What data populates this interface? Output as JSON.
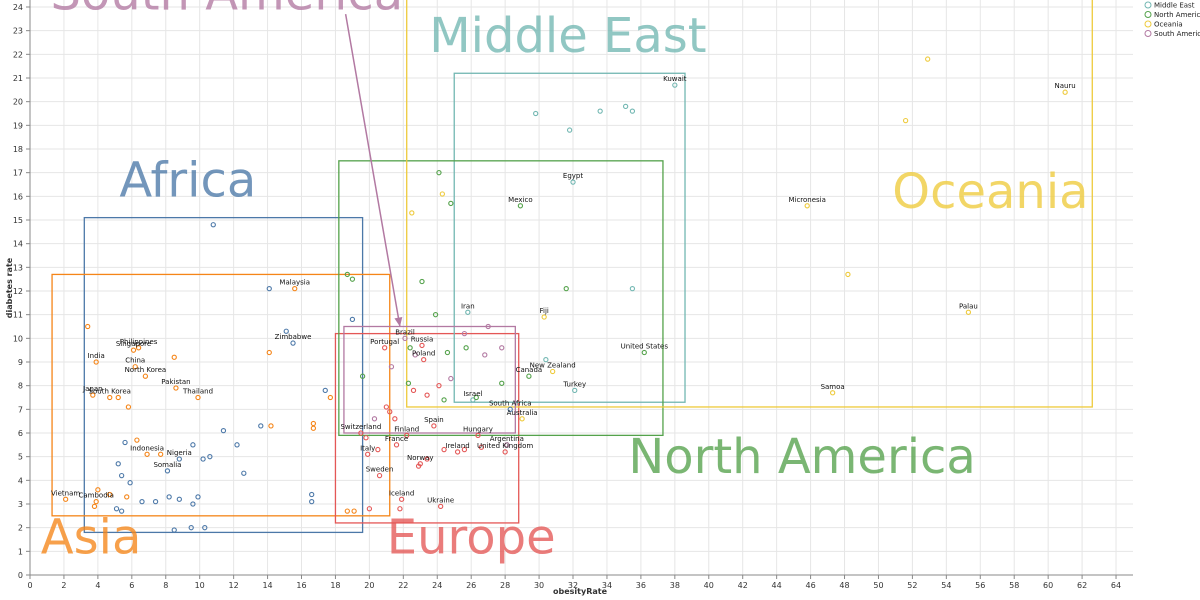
{
  "chart_data": {
    "type": "scatter",
    "xlabel": "obesityRate",
    "ylabel": "diabetes rate",
    "xlim": [
      0,
      65
    ],
    "ylim": [
      0,
      24
    ],
    "x_ticks": [
      0,
      2,
      4,
      6,
      8,
      10,
      12,
      14,
      16,
      18,
      20,
      22,
      24,
      26,
      28,
      30,
      32,
      34,
      36,
      38,
      40,
      42,
      44,
      46,
      48,
      50,
      52,
      54,
      56,
      58,
      60,
      62,
      64
    ],
    "y_ticks": [
      0,
      1,
      2,
      3,
      4,
      5,
      6,
      7,
      8,
      9,
      10,
      11,
      12,
      13,
      14,
      15,
      16,
      17,
      18,
      19,
      20,
      21,
      22,
      23,
      24
    ],
    "grid": true,
    "legend_position": "top-right",
    "legend": [
      {
        "name": "Middle East",
        "color": "#72b7b2"
      },
      {
        "name": "North America",
        "color": "#54a24b"
      },
      {
        "name": "Oceania",
        "color": "#eeca3b"
      },
      {
        "name": "South America",
        "color": "#b279a2"
      }
    ],
    "colors": {
      "Africa": "#4c78a8",
      "Asia": "#f58518",
      "Europe": "#e45756",
      "Middle East": "#72b7b2",
      "North America": "#54a24b",
      "Oceania": "#eeca3b",
      "South America": "#b279a2"
    },
    "regions": [
      {
        "name": "Africa",
        "x0": 3.2,
        "x1": 19.6,
        "y0": 1.8,
        "y1": 15.1,
        "label_x": 9.3,
        "label_y": 16.0
      },
      {
        "name": "Asia",
        "x0": 1.3,
        "x1": 21.2,
        "y0": 2.5,
        "y1": 12.7,
        "label_x": 3.6,
        "label_y": 0.9
      },
      {
        "name": "Europe",
        "x0": 18.0,
        "x1": 28.8,
        "y0": 2.2,
        "y1": 10.2,
        "label_x": 26.0,
        "label_y": 0.9
      },
      {
        "name": "Middle East",
        "x0": 25.0,
        "x1": 38.6,
        "y0": 7.3,
        "y1": 21.2,
        "label_x": 31.7,
        "label_y": 22.1
      },
      {
        "name": "North America",
        "x0": 18.2,
        "x1": 37.3,
        "y0": 5.9,
        "y1": 17.5,
        "label_x": 45.5,
        "label_y": 4.3
      },
      {
        "name": "Oceania",
        "x0": 22.2,
        "x1": 62.6,
        "y0": 7.1,
        "y1": 25.0,
        "label_x": 56.6,
        "label_y": 15.5
      },
      {
        "name": "South America",
        "x0": 18.5,
        "x1": 28.6,
        "y0": 6.0,
        "y1": 10.5,
        "label_x": 11.6,
        "label_y": 23.9
      }
    ],
    "arrow": {
      "x0": 18.6,
      "y0": 23.7,
      "x1": 21.8,
      "y1": 10.5,
      "color": "#b279a2"
    },
    "points": [
      {
        "label": "Kuwait",
        "region": "Middle East",
        "x": 38.0,
        "y": 20.7
      },
      {
        "label": "Nauru",
        "region": "Oceania",
        "x": 61.0,
        "y": 20.4
      },
      {
        "label": "Egypt",
        "region": "Middle East",
        "x": 32.0,
        "y": 16.6
      },
      {
        "label": "Mexico",
        "region": "North America",
        "x": 28.9,
        "y": 15.6
      },
      {
        "label": "Micronesia",
        "region": "Oceania",
        "x": 45.8,
        "y": 15.6
      },
      {
        "label": "Malaysia",
        "region": "Asia",
        "x": 15.6,
        "y": 12.1
      },
      {
        "label": "Iran",
        "region": "Middle East",
        "x": 25.8,
        "y": 11.1
      },
      {
        "label": "Fiji",
        "region": "Oceania",
        "x": 30.3,
        "y": 10.9
      },
      {
        "label": "Palau",
        "region": "Oceania",
        "x": 55.3,
        "y": 11.1
      },
      {
        "label": "Brazil",
        "region": "South America",
        "x": 22.1,
        "y": 10.0
      },
      {
        "label": "Zimbabwe",
        "region": "Africa",
        "x": 15.5,
        "y": 9.8
      },
      {
        "label": "Philippines",
        "region": "Asia",
        "x": 6.4,
        "y": 9.6
      },
      {
        "label": "Singapore",
        "region": "Asia",
        "x": 6.1,
        "y": 9.5
      },
      {
        "label": "Portugal",
        "region": "Europe",
        "x": 20.9,
        "y": 9.6
      },
      {
        "label": "Russia",
        "region": "Europe",
        "x": 23.1,
        "y": 9.7
      },
      {
        "label": "Poland",
        "region": "Europe",
        "x": 23.2,
        "y": 9.1
      },
      {
        "label": "United States",
        "region": "North America",
        "x": 36.2,
        "y": 9.4
      },
      {
        "label": "India",
        "region": "Asia",
        "x": 3.9,
        "y": 9.0
      },
      {
        "label": "China",
        "region": "Asia",
        "x": 6.2,
        "y": 8.8
      },
      {
        "label": "New Zealand",
        "region": "Oceania",
        "x": 30.8,
        "y": 8.6
      },
      {
        "label": "North Korea",
        "region": "Asia",
        "x": 6.8,
        "y": 8.4
      },
      {
        "label": "Canada",
        "region": "North America",
        "x": 29.4,
        "y": 8.4
      },
      {
        "label": "Pakistan",
        "region": "Asia",
        "x": 8.6,
        "y": 7.9
      },
      {
        "label": "Turkey",
        "region": "Middle East",
        "x": 32.1,
        "y": 7.8
      },
      {
        "label": "Samoa",
        "region": "Oceania",
        "x": 47.3,
        "y": 7.7
      },
      {
        "label": "Thailand",
        "region": "Asia",
        "x": 9.9,
        "y": 7.5
      },
      {
        "label": "Japan",
        "region": "Asia",
        "x": 3.7,
        "y": 7.6
      },
      {
        "label": "South Korea",
        "region": "Asia",
        "x": 4.7,
        "y": 7.5
      },
      {
        "label": "Israel",
        "region": "Middle East",
        "x": 26.1,
        "y": 7.4
      },
      {
        "label": "South Africa",
        "region": "Africa",
        "x": 28.3,
        "y": 7.0
      },
      {
        "label": "Australia",
        "region": "Oceania",
        "x": 29.0,
        "y": 6.6
      },
      {
        "label": "Spain",
        "region": "Europe",
        "x": 23.8,
        "y": 6.3
      },
      {
        "label": "Hungary",
        "region": "Europe",
        "x": 26.4,
        "y": 5.9
      },
      {
        "label": "Switzerland",
        "region": "Europe",
        "x": 19.5,
        "y": 6.0
      },
      {
        "label": "Finland",
        "region": "Europe",
        "x": 22.2,
        "y": 5.9
      },
      {
        "label": "France",
        "region": "Europe",
        "x": 21.6,
        "y": 5.5
      },
      {
        "label": "Argentina",
        "region": "South America",
        "x": 28.1,
        "y": 5.5
      },
      {
        "label": "Indonesia",
        "region": "Asia",
        "x": 6.9,
        "y": 5.1
      },
      {
        "label": "United Kingdom",
        "region": "Europe",
        "x": 28.0,
        "y": 5.2
      },
      {
        "label": "Ireland",
        "region": "Europe",
        "x": 25.2,
        "y": 5.2
      },
      {
        "label": "Italy",
        "region": "Europe",
        "x": 19.9,
        "y": 5.1
      },
      {
        "label": "Nigeria",
        "region": "Africa",
        "x": 8.8,
        "y": 4.9
      },
      {
        "label": "Norway",
        "region": "Europe",
        "x": 23.0,
        "y": 4.7
      },
      {
        "label": "Somalia",
        "region": "Africa",
        "x": 8.1,
        "y": 4.4
      },
      {
        "label": "Sweden",
        "region": "Europe",
        "x": 20.6,
        "y": 4.2
      },
      {
        "label": "Iceland",
        "region": "Europe",
        "x": 21.9,
        "y": 3.2
      },
      {
        "label": "Vietnam",
        "region": "Asia",
        "x": 2.1,
        "y": 3.2
      },
      {
        "label": "Cambodia",
        "region": "Asia",
        "x": 3.9,
        "y": 3.1
      },
      {
        "label": "Ukraine",
        "region": "Europe",
        "x": 24.2,
        "y": 2.9
      },
      {
        "label": "",
        "region": "Oceania",
        "x": 52.9,
        "y": 21.8
      },
      {
        "label": "",
        "region": "Oceania",
        "x": 51.6,
        "y": 19.2
      },
      {
        "label": "",
        "region": "Oceania",
        "x": 48.2,
        "y": 12.7
      },
      {
        "label": "",
        "region": "Oceania",
        "x": 24.3,
        "y": 16.1
      },
      {
        "label": "",
        "region": "Oceania",
        "x": 22.5,
        "y": 15.3
      },
      {
        "label": "",
        "region": "Middle East",
        "x": 29.8,
        "y": 19.5
      },
      {
        "label": "",
        "region": "Middle East",
        "x": 31.8,
        "y": 18.8
      },
      {
        "label": "",
        "region": "Middle East",
        "x": 33.6,
        "y": 19.6
      },
      {
        "label": "",
        "region": "Middle East",
        "x": 35.1,
        "y": 19.8
      },
      {
        "label": "",
        "region": "Middle East",
        "x": 35.5,
        "y": 19.6
      },
      {
        "label": "",
        "region": "Middle East",
        "x": 35.5,
        "y": 12.1
      },
      {
        "label": "",
        "region": "Middle East",
        "x": 30.4,
        "y": 9.1
      },
      {
        "label": "",
        "region": "North America",
        "x": 24.1,
        "y": 17.0
      },
      {
        "label": "",
        "region": "North America",
        "x": 24.8,
        "y": 15.7
      },
      {
        "label": "",
        "region": "North America",
        "x": 18.7,
        "y": 12.7
      },
      {
        "label": "",
        "region": "North America",
        "x": 19.0,
        "y": 12.5
      },
      {
        "label": "",
        "region": "North America",
        "x": 23.1,
        "y": 12.4
      },
      {
        "label": "",
        "region": "North America",
        "x": 31.6,
        "y": 12.1
      },
      {
        "label": "",
        "region": "North America",
        "x": 23.9,
        "y": 11.0
      },
      {
        "label": "",
        "region": "North America",
        "x": 22.4,
        "y": 9.6
      },
      {
        "label": "",
        "region": "North America",
        "x": 24.6,
        "y": 9.4
      },
      {
        "label": "",
        "region": "North America",
        "x": 25.7,
        "y": 9.6
      },
      {
        "label": "",
        "region": "North America",
        "x": 19.6,
        "y": 8.4
      },
      {
        "label": "",
        "region": "North America",
        "x": 22.3,
        "y": 8.1
      },
      {
        "label": "",
        "region": "North America",
        "x": 27.8,
        "y": 8.1
      },
      {
        "label": "",
        "region": "North America",
        "x": 24.4,
        "y": 7.4
      },
      {
        "label": "",
        "region": "North America",
        "x": 26.3,
        "y": 7.5
      },
      {
        "label": "",
        "region": "Africa",
        "x": 10.8,
        "y": 14.8
      },
      {
        "label": "",
        "region": "Africa",
        "x": 14.1,
        "y": 12.1
      },
      {
        "label": "",
        "region": "Africa",
        "x": 15.1,
        "y": 10.3
      },
      {
        "label": "",
        "region": "Africa",
        "x": 19.0,
        "y": 10.8
      },
      {
        "label": "",
        "region": "Africa",
        "x": 17.4,
        "y": 7.8
      },
      {
        "label": "",
        "region": "Africa",
        "x": 13.6,
        "y": 6.3
      },
      {
        "label": "",
        "region": "Africa",
        "x": 11.4,
        "y": 6.1
      },
      {
        "label": "",
        "region": "Africa",
        "x": 12.2,
        "y": 5.5
      },
      {
        "label": "",
        "region": "Africa",
        "x": 10.6,
        "y": 5.0
      },
      {
        "label": "",
        "region": "Africa",
        "x": 9.6,
        "y": 5.5
      },
      {
        "label": "",
        "region": "Africa",
        "x": 5.6,
        "y": 5.6
      },
      {
        "label": "",
        "region": "Africa",
        "x": 5.2,
        "y": 4.7
      },
      {
        "label": "",
        "region": "Africa",
        "x": 5.4,
        "y": 4.2
      },
      {
        "label": "",
        "region": "Africa",
        "x": 5.9,
        "y": 3.9
      },
      {
        "label": "",
        "region": "Africa",
        "x": 12.6,
        "y": 4.3
      },
      {
        "label": "",
        "region": "Africa",
        "x": 10.2,
        "y": 4.9
      },
      {
        "label": "",
        "region": "Africa",
        "x": 16.6,
        "y": 3.4
      },
      {
        "label": "",
        "region": "Africa",
        "x": 16.6,
        "y": 3.1
      },
      {
        "label": "",
        "region": "Africa",
        "x": 6.6,
        "y": 3.1
      },
      {
        "label": "",
        "region": "Africa",
        "x": 7.4,
        "y": 3.1
      },
      {
        "label": "",
        "region": "Africa",
        "x": 8.2,
        "y": 3.3
      },
      {
        "label": "",
        "region": "Africa",
        "x": 8.8,
        "y": 3.2
      },
      {
        "label": "",
        "region": "Africa",
        "x": 9.6,
        "y": 3.0
      },
      {
        "label": "",
        "region": "Africa",
        "x": 9.9,
        "y": 3.3
      },
      {
        "label": "",
        "region": "Africa",
        "x": 5.1,
        "y": 2.8
      },
      {
        "label": "",
        "region": "Africa",
        "x": 5.4,
        "y": 2.7
      },
      {
        "label": "",
        "region": "Africa",
        "x": 8.5,
        "y": 1.9
      },
      {
        "label": "",
        "region": "Africa",
        "x": 9.5,
        "y": 2.0
      },
      {
        "label": "",
        "region": "Africa",
        "x": 10.3,
        "y": 2.0
      },
      {
        "label": "",
        "region": "Asia",
        "x": 3.4,
        "y": 10.5
      },
      {
        "label": "",
        "region": "Asia",
        "x": 8.5,
        "y": 9.2
      },
      {
        "label": "",
        "region": "Asia",
        "x": 14.1,
        "y": 9.4
      },
      {
        "label": "",
        "region": "Asia",
        "x": 16.7,
        "y": 6.4
      },
      {
        "label": "",
        "region": "Asia",
        "x": 16.7,
        "y": 6.2
      },
      {
        "label": "",
        "region": "Asia",
        "x": 14.2,
        "y": 6.3
      },
      {
        "label": "",
        "region": "Asia",
        "x": 17.7,
        "y": 7.5
      },
      {
        "label": "",
        "region": "Asia",
        "x": 5.8,
        "y": 7.1
      },
      {
        "label": "",
        "region": "Asia",
        "x": 5.2,
        "y": 7.5
      },
      {
        "label": "",
        "region": "Asia",
        "x": 6.3,
        "y": 5.7
      },
      {
        "label": "",
        "region": "Asia",
        "x": 7.7,
        "y": 5.1
      },
      {
        "label": "",
        "region": "Asia",
        "x": 4.0,
        "y": 3.6
      },
      {
        "label": "",
        "region": "Asia",
        "x": 4.7,
        "y": 3.4
      },
      {
        "label": "",
        "region": "Asia",
        "x": 5.7,
        "y": 3.3
      },
      {
        "label": "",
        "region": "Asia",
        "x": 3.8,
        "y": 2.9
      },
      {
        "label": "",
        "region": "Asia",
        "x": 18.7,
        "y": 2.7
      },
      {
        "label": "",
        "region": "Asia",
        "x": 19.1,
        "y": 2.7
      },
      {
        "label": "",
        "region": "Europe",
        "x": 21.2,
        "y": 6.9
      },
      {
        "label": "",
        "region": "Europe",
        "x": 22.6,
        "y": 7.8
      },
      {
        "label": "",
        "region": "Europe",
        "x": 23.4,
        "y": 7.6
      },
      {
        "label": "",
        "region": "Europe",
        "x": 24.1,
        "y": 8.0
      },
      {
        "label": "",
        "region": "Europe",
        "x": 21.0,
        "y": 7.1
      },
      {
        "label": "",
        "region": "Europe",
        "x": 21.5,
        "y": 6.6
      },
      {
        "label": "",
        "region": "Europe",
        "x": 19.8,
        "y": 5.8
      },
      {
        "label": "",
        "region": "Europe",
        "x": 20.5,
        "y": 5.3
      },
      {
        "label": "",
        "region": "Europe",
        "x": 22.9,
        "y": 4.6
      },
      {
        "label": "",
        "region": "Europe",
        "x": 23.4,
        "y": 4.9
      },
      {
        "label": "",
        "region": "Europe",
        "x": 24.4,
        "y": 5.3
      },
      {
        "label": "",
        "region": "Europe",
        "x": 25.6,
        "y": 5.3
      },
      {
        "label": "",
        "region": "Europe",
        "x": 26.6,
        "y": 5.4
      },
      {
        "label": "",
        "region": "Europe",
        "x": 21.8,
        "y": 2.8
      },
      {
        "label": "",
        "region": "Europe",
        "x": 20.0,
        "y": 2.8
      },
      {
        "label": "",
        "region": "South America",
        "x": 21.3,
        "y": 8.8
      },
      {
        "label": "",
        "region": "South America",
        "x": 24.8,
        "y": 8.3
      },
      {
        "label": "",
        "region": "South America",
        "x": 25.6,
        "y": 10.2
      },
      {
        "label": "",
        "region": "South America",
        "x": 27.0,
        "y": 10.5
      },
      {
        "label": "",
        "region": "South America",
        "x": 27.8,
        "y": 9.6
      },
      {
        "label": "",
        "region": "South America",
        "x": 26.8,
        "y": 9.3
      },
      {
        "label": "",
        "region": "South America",
        "x": 22.7,
        "y": 9.3
      },
      {
        "label": "",
        "region": "South America",
        "x": 20.3,
        "y": 6.6
      }
    ]
  }
}
